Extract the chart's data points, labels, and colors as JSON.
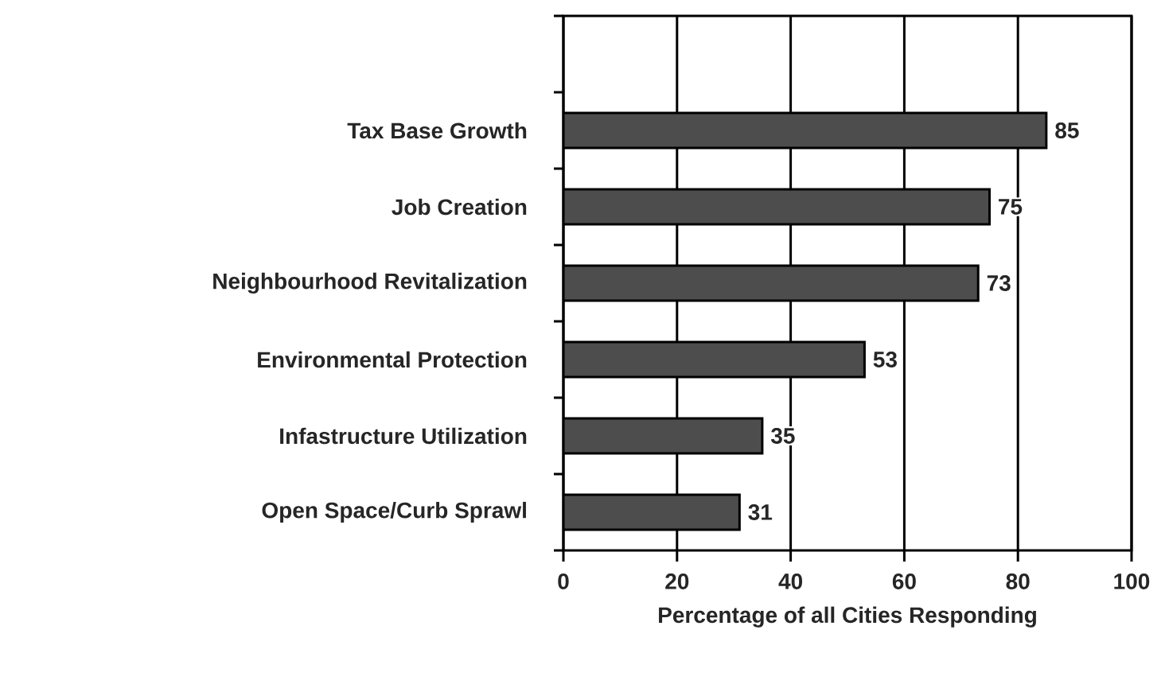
{
  "chart_data": {
    "type": "bar",
    "orientation": "horizontal",
    "categories": [
      "Tax Base Growth",
      "Job Creation",
      "Neighbourhood Revitalization",
      "Environmental Protection",
      "Infastructure Utilization",
      "Open Space/Curb Sprawl"
    ],
    "values": [
      85,
      75,
      73,
      53,
      35,
      31
    ],
    "color": "#4d4d4d",
    "xlabel": "Percentage of all Cities Responding",
    "xlim": [
      0,
      100
    ],
    "xticks": [
      0,
      20,
      40,
      60,
      80,
      100
    ],
    "grid": "x",
    "data_labels": true
  }
}
